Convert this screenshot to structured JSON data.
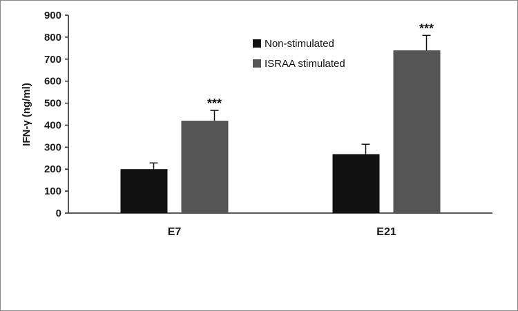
{
  "chart_data": {
    "type": "bar",
    "categories": [
      "E7",
      "E21"
    ],
    "series": [
      {
        "name": "Non-stimulated",
        "color": "#111111",
        "values": [
          200,
          268
        ],
        "errors": [
          28,
          45
        ]
      },
      {
        "name": "ISRAA stimulated",
        "color": "#555555",
        "values": [
          420,
          740
        ],
        "errors": [
          47,
          68
        ]
      }
    ],
    "annotations": [
      "",
      "***"
    ],
    "title": "",
    "xlabel": "",
    "ylabel": "IFN-γ (ng/ml)",
    "ylim": [
      0,
      900
    ],
    "yticks": [
      0,
      100,
      200,
      300,
      400,
      500,
      600,
      700,
      800,
      900
    ],
    "grid": false,
    "legend_position": "top-center"
  }
}
